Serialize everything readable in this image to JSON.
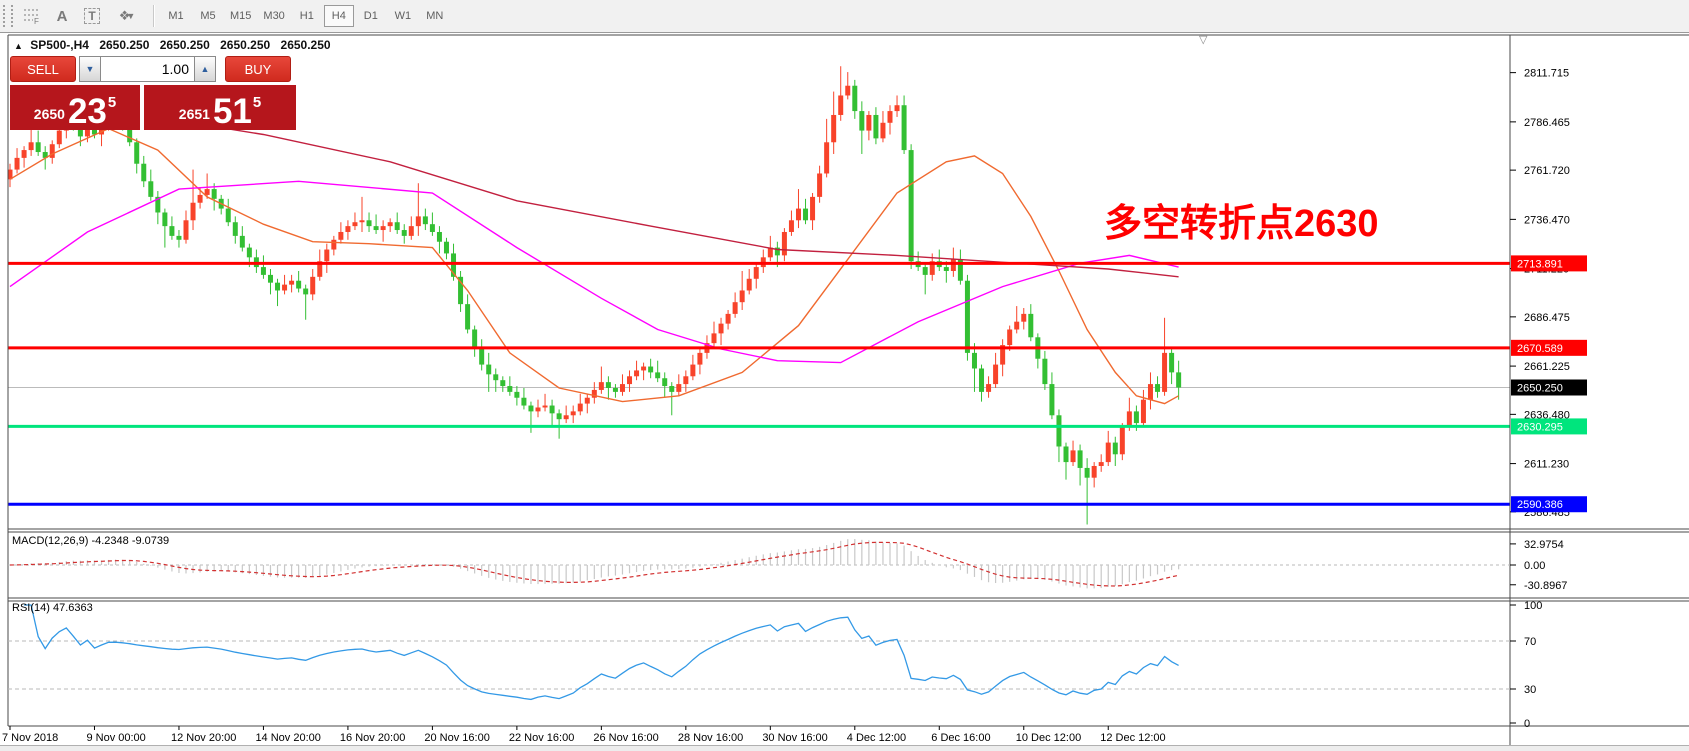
{
  "toolbar": {
    "tools": [
      {
        "name": "fibonacci-tool",
        "glyph": "F"
      },
      {
        "name": "text-label-tool",
        "glyph": "A"
      },
      {
        "name": "text-tool",
        "glyph": "T"
      },
      {
        "name": "arrows-tool",
        "glyph": "❖"
      }
    ],
    "timeframes": [
      "M1",
      "M5",
      "M15",
      "M30",
      "H1",
      "H4",
      "D1",
      "W1",
      "MN"
    ],
    "active_timeframe": "H4"
  },
  "title": {
    "collapse_marker": "▲",
    "symbol": "SP500-,H4",
    "open": "2650.250",
    "high": "2650.250",
    "low": "2650.250",
    "close": "2650.250"
  },
  "trade_panel": {
    "sell_label": "SELL",
    "buy_label": "BUY",
    "volume": "1.00",
    "spin_down": "▼",
    "spin_up": "▲",
    "bid_prefix": "2650",
    "bid_big": "23",
    "bid_sup": "5",
    "ask_prefix": "2651",
    "ask_big": "51",
    "ask_sup": "5"
  },
  "annotation": {
    "text": "多空转折点2630",
    "color": "#ff0000"
  },
  "shift_marker": "▽",
  "price_scale": {
    "ticks": [
      "2811.715",
      "2786.465",
      "2761.720",
      "2736.470",
      "2711.220",
      "2686.475",
      "2661.225",
      "2636.480",
      "2611.230",
      "2586.485"
    ],
    "tags": [
      {
        "label": "2713.891",
        "bg": "#ff0000",
        "fg": "#ffffff"
      },
      {
        "label": "2670.589",
        "bg": "#ff0000",
        "fg": "#ffffff"
      },
      {
        "label": "2650.250",
        "bg": "#000000",
        "fg": "#ffffff"
      },
      {
        "label": "2630.295",
        "bg": "#00e57d",
        "fg": "#ffffff"
      },
      {
        "label": "2590.386",
        "bg": "#0000ff",
        "fg": "#ffffff"
      }
    ]
  },
  "indicators": {
    "macd": {
      "header": "MACD(12,26,9) -4.2348 -9.0739",
      "scale": [
        {
          "label": "32.9754",
          "value": 32.9754
        },
        {
          "label": "0.00",
          "value": 0
        },
        {
          "label": "-30.8967",
          "value": -30.8967
        }
      ]
    },
    "rsi": {
      "header": "RSI(14) 47.6363",
      "scale": [
        {
          "label": "100",
          "value": 100
        },
        {
          "label": "70",
          "value": 70
        },
        {
          "label": "30",
          "value": 30
        },
        {
          "label": "0",
          "value": 0
        }
      ],
      "levels": [
        70,
        30
      ]
    }
  },
  "time_axis": {
    "labels": [
      "7 Nov 2018",
      "9 Nov 00:00",
      "12 Nov 20:00",
      "14 Nov 20:00",
      "16 Nov 20:00",
      "20 Nov 16:00",
      "22 Nov 16:00",
      "26 Nov 16:00",
      "28 Nov 16:00",
      "30 Nov 16:00",
      "4 Dec 12:00",
      "6 Dec 16:00",
      "10 Dec 12:00",
      "12 Dec 12:00"
    ],
    "bars_per_label": 12
  },
  "chart_data": {
    "type": "candlestick",
    "symbol": "SP500-",
    "timeframe": "H4",
    "price_range": {
      "top": 2830.5,
      "bottom": 2578.2
    },
    "colors": {
      "bull": "#f8432a",
      "bear": "#33bf33",
      "ma_fast": "#f06a30",
      "ma_medium": "#ff00ff",
      "ma_slow": "#c2203f",
      "macd_hist": "#c8c8c8",
      "macd_signal": "#d23030",
      "rsi_line": "#3399e6",
      "grid_dash": "#b9b9b9",
      "current_price_line": "#bbbbbb"
    },
    "hlines": [
      {
        "price": 2713.891,
        "color": "#ff0000",
        "width": 3
      },
      {
        "price": 2670.589,
        "color": "#ff0000",
        "width": 3
      },
      {
        "price": 2630.295,
        "color": "#00e57d",
        "width": 3
      },
      {
        "price": 2590.386,
        "color": "#0000ff",
        "width": 3
      }
    ],
    "current_price": 2650.25,
    "candles": [
      [
        2757,
        2765,
        2753,
        2762
      ],
      [
        2762,
        2773,
        2760,
        2768
      ],
      [
        2768,
        2774,
        2763,
        2772
      ],
      [
        2772,
        2786,
        2769,
        2776
      ],
      [
        2776,
        2782,
        2769,
        2771
      ],
      [
        2771,
        2774,
        2762,
        2768
      ],
      [
        2768,
        2777,
        2765,
        2775
      ],
      [
        2775,
        2787,
        2773,
        2782
      ],
      [
        2782,
        2791,
        2778,
        2788
      ],
      [
        2788,
        2789,
        2782,
        2784
      ],
      [
        2784,
        2786,
        2774,
        2779
      ],
      [
        2779,
        2790,
        2776,
        2786
      ],
      [
        2786,
        2792,
        2778,
        2780
      ],
      [
        2780,
        2788,
        2774,
        2785
      ],
      [
        2785,
        2792,
        2782,
        2790
      ],
      [
        2790,
        2800,
        2788,
        2792
      ],
      [
        2792,
        2795,
        2782,
        2786
      ],
      [
        2786,
        2791,
        2774,
        2776
      ],
      [
        2776,
        2778,
        2760,
        2765
      ],
      [
        2765,
        2769,
        2753,
        2756
      ],
      [
        2756,
        2762,
        2746,
        2748
      ],
      [
        2748,
        2751,
        2734,
        2740
      ],
      [
        2740,
        2742,
        2722,
        2733
      ],
      [
        2733,
        2738,
        2726,
        2728
      ],
      [
        2728,
        2731,
        2722,
        2726
      ],
      [
        2726,
        2741,
        2724,
        2736
      ],
      [
        2736,
        2762,
        2731,
        2745
      ],
      [
        2745,
        2753,
        2742,
        2749
      ],
      [
        2749,
        2760,
        2747,
        2752
      ],
      [
        2752,
        2755,
        2741,
        2747
      ],
      [
        2747,
        2749,
        2739,
        2742
      ],
      [
        2742,
        2747,
        2733,
        2735
      ],
      [
        2735,
        2738,
        2724,
        2728
      ],
      [
        2728,
        2733,
        2720,
        2722
      ],
      [
        2722,
        2724,
        2712,
        2717
      ],
      [
        2717,
        2721,
        2709,
        2712
      ],
      [
        2712,
        2718,
        2706,
        2708
      ],
      [
        2708,
        2711,
        2698,
        2704
      ],
      [
        2704,
        2706,
        2692,
        2700
      ],
      [
        2700,
        2708,
        2698,
        2703
      ],
      [
        2703,
        2708,
        2699,
        2705
      ],
      [
        2705,
        2710,
        2699,
        2701
      ],
      [
        2701,
        2703,
        2685,
        2698
      ],
      [
        2698,
        2711,
        2695,
        2707
      ],
      [
        2707,
        2721,
        2705,
        2715
      ],
      [
        2715,
        2724,
        2709,
        2721
      ],
      [
        2721,
        2728,
        2718,
        2726
      ],
      [
        2726,
        2735,
        2724,
        2730
      ],
      [
        2730,
        2736,
        2726,
        2733
      ],
      [
        2733,
        2740,
        2731,
        2735
      ],
      [
        2735,
        2748,
        2730,
        2736
      ],
      [
        2736,
        2740,
        2730,
        2733
      ],
      [
        2733,
        2739,
        2729,
        2731
      ],
      [
        2731,
        2736,
        2725,
        2733
      ],
      [
        2733,
        2737,
        2730,
        2735
      ],
      [
        2735,
        2740,
        2729,
        2731
      ],
      [
        2731,
        2734,
        2724,
        2728
      ],
      [
        2728,
        2738,
        2726,
        2733
      ],
      [
        2733,
        2755,
        2728,
        2738
      ],
      [
        2738,
        2742,
        2731,
        2734
      ],
      [
        2734,
        2740,
        2728,
        2730
      ],
      [
        2730,
        2733,
        2719,
        2725
      ],
      [
        2725,
        2727,
        2716,
        2719
      ],
      [
        2719,
        2724,
        2705,
        2707
      ],
      [
        2707,
        2710,
        2689,
        2693
      ],
      [
        2693,
        2698,
        2678,
        2680
      ],
      [
        2680,
        2682,
        2666,
        2671
      ],
      [
        2671,
        2675,
        2659,
        2662
      ],
      [
        2662,
        2668,
        2648,
        2657
      ],
      [
        2657,
        2660,
        2648,
        2654
      ],
      [
        2654,
        2656,
        2648,
        2651
      ],
      [
        2651,
        2656,
        2646,
        2648
      ],
      [
        2648,
        2651,
        2641,
        2645
      ],
      [
        2645,
        2650,
        2639,
        2641
      ],
      [
        2641,
        2643,
        2627,
        2638
      ],
      [
        2638,
        2644,
        2635,
        2640
      ],
      [
        2640,
        2647,
        2638,
        2641
      ],
      [
        2641,
        2644,
        2631,
        2637
      ],
      [
        2637,
        2639,
        2624,
        2634
      ],
      [
        2634,
        2641,
        2632,
        2636
      ],
      [
        2636,
        2641,
        2632,
        2638
      ],
      [
        2638,
        2647,
        2636,
        2642
      ],
      [
        2642,
        2647,
        2637,
        2645
      ],
      [
        2645,
        2653,
        2642,
        2649
      ],
      [
        2649,
        2661,
        2647,
        2653
      ],
      [
        2653,
        2656,
        2644,
        2650
      ],
      [
        2650,
        2652,
        2645,
        2648
      ],
      [
        2648,
        2657,
        2646,
        2652
      ],
      [
        2652,
        2659,
        2648,
        2656
      ],
      [
        2656,
        2664,
        2654,
        2659
      ],
      [
        2659,
        2663,
        2654,
        2661
      ],
      [
        2661,
        2665,
        2655,
        2658
      ],
      [
        2658,
        2664,
        2653,
        2655
      ],
      [
        2655,
        2658,
        2645,
        2651
      ],
      [
        2651,
        2653,
        2636,
        2648
      ],
      [
        2648,
        2657,
        2646,
        2652
      ],
      [
        2652,
        2659,
        2648,
        2656
      ],
      [
        2656,
        2667,
        2654,
        2662
      ],
      [
        2662,
        2670,
        2657,
        2668
      ],
      [
        2668,
        2677,
        2665,
        2673
      ],
      [
        2673,
        2684,
        2671,
        2678
      ],
      [
        2678,
        2686,
        2672,
        2683
      ],
      [
        2683,
        2690,
        2680,
        2688
      ],
      [
        2688,
        2699,
        2686,
        2694
      ],
      [
        2694,
        2710,
        2690,
        2700
      ],
      [
        2700,
        2711,
        2698,
        2706
      ],
      [
        2706,
        2714,
        2701,
        2712
      ],
      [
        2712,
        2721,
        2709,
        2717
      ],
      [
        2717,
        2728,
        2715,
        2722
      ],
      [
        2722,
        2725,
        2712,
        2718
      ],
      [
        2718,
        2732,
        2715,
        2730
      ],
      [
        2730,
        2741,
        2728,
        2736
      ],
      [
        2736,
        2752,
        2732,
        2742
      ],
      [
        2742,
        2747,
        2734,
        2736
      ],
      [
        2736,
        2750,
        2731,
        2748
      ],
      [
        2748,
        2764,
        2745,
        2760
      ],
      [
        2760,
        2788,
        2758,
        2776
      ],
      [
        2776,
        2802,
        2770,
        2790
      ],
      [
        2790,
        2815,
        2787,
        2800
      ],
      [
        2800,
        2812,
        2798,
        2805
      ],
      [
        2805,
        2808,
        2788,
        2792
      ],
      [
        2792,
        2797,
        2770,
        2782
      ],
      [
        2782,
        2792,
        2777,
        2790
      ],
      [
        2790,
        2794,
        2775,
        2778
      ],
      [
        2778,
        2792,
        2776,
        2786
      ],
      [
        2786,
        2795,
        2780,
        2792
      ],
      [
        2792,
        2800,
        2789,
        2795
      ],
      [
        2795,
        2800,
        2770,
        2772
      ],
      [
        2772,
        2775,
        2711,
        2715
      ],
      [
        2715,
        2720,
        2710,
        2712
      ],
      [
        2712,
        2714,
        2698,
        2708
      ],
      [
        2708,
        2719,
        2705,
        2715
      ],
      [
        2715,
        2721,
        2710,
        2712
      ],
      [
        2712,
        2715,
        2704,
        2710
      ],
      [
        2710,
        2722,
        2707,
        2716
      ],
      [
        2716,
        2721,
        2703,
        2705
      ],
      [
        2705,
        2708,
        2664,
        2668
      ],
      [
        2668,
        2673,
        2648,
        2660
      ],
      [
        2660,
        2662,
        2643,
        2648
      ],
      [
        2648,
        2656,
        2645,
        2652
      ],
      [
        2652,
        2668,
        2650,
        2662
      ],
      [
        2662,
        2675,
        2656,
        2672
      ],
      [
        2672,
        2682,
        2669,
        2680
      ],
      [
        2680,
        2692,
        2678,
        2684
      ],
      [
        2684,
        2691,
        2680,
        2688
      ],
      [
        2688,
        2693,
        2674,
        2676
      ],
      [
        2676,
        2678,
        2660,
        2665
      ],
      [
        2665,
        2669,
        2649,
        2652
      ],
      [
        2652,
        2658,
        2634,
        2636
      ],
      [
        2636,
        2639,
        2612,
        2620
      ],
      [
        2620,
        2622,
        2603,
        2612
      ],
      [
        2612,
        2623,
        2610,
        2618
      ],
      [
        2618,
        2621,
        2600,
        2609
      ],
      [
        2609,
        2614,
        2580,
        2604
      ],
      [
        2604,
        2612,
        2599,
        2610
      ],
      [
        2610,
        2616,
        2607,
        2612
      ],
      [
        2612,
        2628,
        2610,
        2622
      ],
      [
        2622,
        2625,
        2610,
        2616
      ],
      [
        2616,
        2632,
        2613,
        2630
      ],
      [
        2630,
        2645,
        2628,
        2638
      ],
      [
        2638,
        2641,
        2628,
        2632
      ],
      [
        2632,
        2649,
        2630,
        2644
      ],
      [
        2644,
        2658,
        2639,
        2652
      ],
      [
        2652,
        2656,
        2645,
        2648
      ],
      [
        2648,
        2686,
        2646,
        2668
      ],
      [
        2668,
        2671,
        2652,
        2658
      ],
      [
        2658,
        2664,
        2644,
        2650.25
      ]
    ],
    "ma_lines": [
      {
        "name": "ma-fast",
        "color": "#f06a30",
        "points": [
          [
            0,
            2757
          ],
          [
            6,
            2770
          ],
          [
            14,
            2783
          ],
          [
            21,
            2772
          ],
          [
            28,
            2748
          ],
          [
            36,
            2734
          ],
          [
            43,
            2725
          ],
          [
            51,
            2724
          ],
          [
            60,
            2722
          ],
          [
            65,
            2700
          ],
          [
            71,
            2668
          ],
          [
            78,
            2650
          ],
          [
            87,
            2643
          ],
          [
            95,
            2646
          ],
          [
            104,
            2658
          ],
          [
            112,
            2682
          ],
          [
            119,
            2716
          ],
          [
            126,
            2750
          ],
          [
            133,
            2766
          ],
          [
            137,
            2769
          ],
          [
            141,
            2760
          ],
          [
            145,
            2738
          ],
          [
            149,
            2710
          ],
          [
            153,
            2680
          ],
          [
            157,
            2658
          ],
          [
            160,
            2646
          ],
          [
            164,
            2642
          ],
          [
            166,
            2646
          ]
        ]
      },
      {
        "name": "ma-medium",
        "color": "#ff00ff",
        "points": [
          [
            0,
            2702
          ],
          [
            11,
            2730
          ],
          [
            24,
            2752
          ],
          [
            41,
            2756
          ],
          [
            60,
            2750
          ],
          [
            72,
            2722
          ],
          [
            84,
            2696
          ],
          [
            92,
            2680
          ],
          [
            101,
            2670
          ],
          [
            109,
            2664
          ],
          [
            118,
            2663
          ],
          [
            129,
            2684
          ],
          [
            141,
            2702
          ],
          [
            152,
            2714
          ],
          [
            159,
            2718
          ],
          [
            166,
            2712
          ]
        ]
      },
      {
        "name": "ma-slow",
        "color": "#c2203f",
        "points": [
          [
            0,
            2801
          ],
          [
            17,
            2791
          ],
          [
            36,
            2780
          ],
          [
            54,
            2766
          ],
          [
            72,
            2746
          ],
          [
            91,
            2733
          ],
          [
            109,
            2721
          ],
          [
            126,
            2718
          ],
          [
            143,
            2714
          ],
          [
            156,
            2711
          ],
          [
            166,
            2707
          ]
        ]
      }
    ],
    "macd": {
      "fast": 12,
      "slow": 26,
      "signal": 9
    },
    "rsi": {
      "period": 14
    }
  }
}
